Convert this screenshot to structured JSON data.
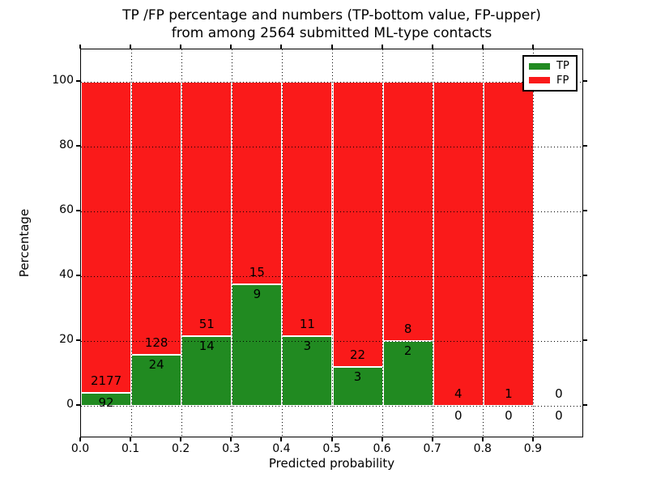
{
  "chart_data": {
    "type": "bar",
    "stacked_percentage": true,
    "title_line1": "TP /FP percentage and numbers (TP-bottom value, FP-upper)",
    "title_line2": "from among 2564 submitted ML-type contacts",
    "xlabel": "Predicted probability",
    "ylabel": "Percentage",
    "total_contacts": 2564,
    "xlim": [
      0.0,
      1.0
    ],
    "ylim": [
      -10,
      110
    ],
    "xticks": [
      0.0,
      0.1,
      0.2,
      0.3,
      0.4,
      0.5,
      0.6,
      0.7,
      0.8,
      0.9
    ],
    "xtick_labels": [
      "0.0",
      "0.1",
      "0.2",
      "0.3",
      "0.4",
      "0.5",
      "0.6",
      "0.7",
      "0.8",
      "0.9"
    ],
    "yticks": [
      0,
      20,
      40,
      60,
      80,
      100
    ],
    "ytick_labels": [
      "0",
      "20",
      "40",
      "60",
      "80",
      "100"
    ],
    "grid": "dotted",
    "colors": {
      "tp": "#218a21",
      "fp": "#fa1a1a",
      "bar_edge": "#ffffff"
    },
    "legend": {
      "position": "upper right",
      "entries": [
        {
          "label": "TP",
          "color": "#218a21"
        },
        {
          "label": "FP",
          "color": "#fa1a1a"
        }
      ]
    },
    "bins": [
      {
        "x_range": [
          0.0,
          0.1
        ],
        "tp_count": 92,
        "fp_count": 2177,
        "tp_pct": 4.05,
        "has_bar": true
      },
      {
        "x_range": [
          0.1,
          0.2
        ],
        "tp_count": 24,
        "fp_count": 128,
        "tp_pct": 15.79,
        "has_bar": true
      },
      {
        "x_range": [
          0.2,
          0.3
        ],
        "tp_count": 14,
        "fp_count": 51,
        "tp_pct": 21.54,
        "has_bar": true
      },
      {
        "x_range": [
          0.3,
          0.4
        ],
        "tp_count": 9,
        "fp_count": 15,
        "tp_pct": 37.5,
        "has_bar": true
      },
      {
        "x_range": [
          0.4,
          0.5
        ],
        "tp_count": 3,
        "fp_count": 11,
        "tp_pct": 21.43,
        "has_bar": true
      },
      {
        "x_range": [
          0.5,
          0.6
        ],
        "tp_count": 3,
        "fp_count": 22,
        "tp_pct": 12.0,
        "has_bar": true
      },
      {
        "x_range": [
          0.6,
          0.7
        ],
        "tp_count": 2,
        "fp_count": 8,
        "tp_pct": 20.0,
        "has_bar": true
      },
      {
        "x_range": [
          0.7,
          0.8
        ],
        "tp_count": 0,
        "fp_count": 4,
        "tp_pct": 0.0,
        "has_bar": true
      },
      {
        "x_range": [
          0.8,
          0.9
        ],
        "tp_count": 0,
        "fp_count": 1,
        "tp_pct": 0.0,
        "has_bar": true
      },
      {
        "x_range": [
          0.9,
          1.0
        ],
        "tp_count": 0,
        "fp_count": 0,
        "tp_pct": 0.0,
        "has_bar": false
      }
    ]
  }
}
